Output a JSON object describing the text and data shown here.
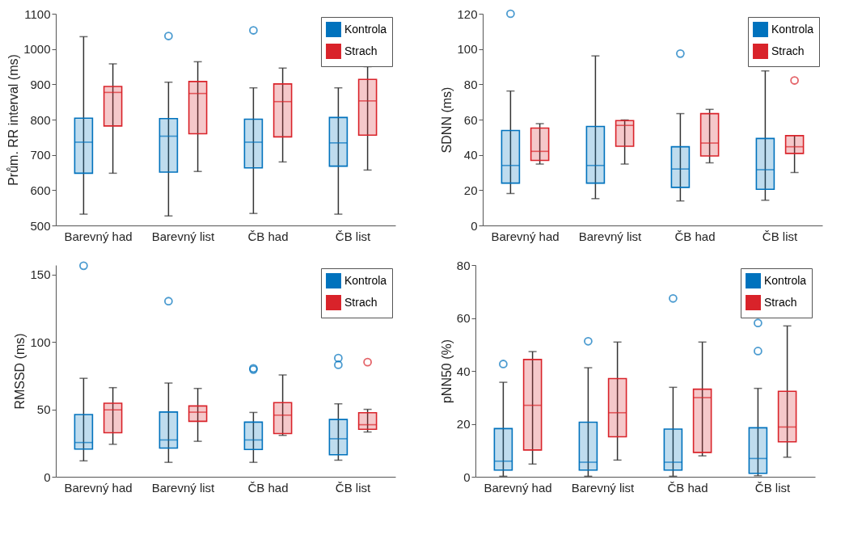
{
  "chart_data": [
    {
      "type": "box",
      "ylabel": "Prům. RR interval (ms)",
      "categories": [
        "Barevný had",
        "Barevný list",
        "ČB had",
        "ČB list"
      ],
      "ylim": [
        500,
        1100
      ],
      "yticks": [
        500,
        600,
        700,
        800,
        900,
        1000,
        1100
      ],
      "grid": false,
      "legend": "top right",
      "series": [
        {
          "name": "Kontrola",
          "color": "#0072bd",
          "boxes": [
            {
              "low": 532,
              "q1": 648,
              "median": 736,
              "q3": 804,
              "high": 1035
            },
            {
              "low": 527,
              "q1": 651,
              "median": 753,
              "q3": 803,
              "high": 906,
              "outliers": [
                1037
              ]
            },
            {
              "low": 534,
              "q1": 663,
              "median": 736,
              "q3": 801,
              "high": 890,
              "outliers": [
                1053
              ]
            },
            {
              "low": 532,
              "q1": 668,
              "median": 734,
              "q3": 806,
              "high": 890
            }
          ]
        },
        {
          "name": "Strach",
          "color": "#d9232a",
          "boxes": [
            {
              "low": 648,
              "q1": 782,
              "median": 877,
              "q3": 894,
              "high": 958
            },
            {
              "low": 653,
              "q1": 760,
              "median": 874,
              "q3": 908,
              "high": 964
            },
            {
              "low": 680,
              "q1": 751,
              "median": 851,
              "q3": 901,
              "high": 946
            },
            {
              "low": 657,
              "q1": 756,
              "median": 853,
              "q3": 914,
              "high": 950
            }
          ]
        }
      ]
    },
    {
      "type": "box",
      "ylabel": "SDNN (ms)",
      "categories": [
        "Barevný had",
        "Barevný list",
        "ČB had",
        "ČB list"
      ],
      "ylim": [
        0,
        120
      ],
      "yticks": [
        0,
        20,
        40,
        60,
        80,
        100,
        120
      ],
      "grid": false,
      "legend": "top right",
      "series": [
        {
          "name": "Kontrola",
          "color": "#0072bd",
          "boxes": [
            {
              "low": 18.1,
              "q1": 24,
              "median": 34,
              "q3": 53.8,
              "high": 76.2,
              "outliers": [
                120
              ]
            },
            {
              "low": 15.2,
              "q1": 24,
              "median": 34,
              "q3": 56.1,
              "high": 96.1
            },
            {
              "low": 13.9,
              "q1": 21.6,
              "median": 32,
              "q3": 44.6,
              "high": 63.4,
              "outliers": [
                97.4
              ]
            },
            {
              "low": 14.3,
              "q1": 20.5,
              "median": 31.6,
              "q3": 49.3,
              "high": 87.6
            }
          ]
        },
        {
          "name": "Strach",
          "color": "#d9232a",
          "boxes": [
            {
              "low": 34.8,
              "q1": 36.9,
              "median": 42,
              "q3": 55.2,
              "high": 57.7
            },
            {
              "low": 34.8,
              "q1": 44.9,
              "median": 56.7,
              "q3": 59.4,
              "high": 59.8
            },
            {
              "low": 35.5,
              "q1": 39.4,
              "median": 46.7,
              "q3": 63.4,
              "high": 65.8
            },
            {
              "low": 30,
              "q1": 40.8,
              "median": 44.6,
              "q3": 50.9,
              "high": 50.9,
              "outliers": [
                82.2
              ]
            }
          ]
        }
      ]
    },
    {
      "type": "box",
      "ylabel": "RMSSD (ms)",
      "categories": [
        "Barevný had",
        "Barevný list",
        "ČB had",
        "ČB list"
      ],
      "ylim": [
        0,
        157
      ],
      "yticks": [
        0,
        50,
        100,
        150
      ],
      "grid": false,
      "legend": "top right",
      "series": [
        {
          "name": "Kontrola",
          "color": "#0072bd",
          "boxes": [
            {
              "low": 11.8,
              "q1": 20.5,
              "median": 25.4,
              "q3": 46.1,
              "high": 73,
              "outliers": [
                156.5
              ]
            },
            {
              "low": 10.7,
              "q1": 21.3,
              "median": 27.3,
              "q3": 48,
              "high": 69.5,
              "outliers": [
                130.2
              ]
            },
            {
              "low": 10.7,
              "q1": 20.2,
              "median": 27.3,
              "q3": 40.5,
              "high": 47.7,
              "outliers": [
                80.4,
                79.5
              ]
            },
            {
              "low": 12.3,
              "q1": 16.3,
              "median": 28.2,
              "q3": 42.5,
              "high": 54.1,
              "outliers": [
                88,
                83
              ]
            }
          ]
        },
        {
          "name": "Strach",
          "color": "#d9232a",
          "boxes": [
            {
              "low": 24.1,
              "q1": 32.7,
              "median": 49.6,
              "q3": 54.5,
              "high": 66.1
            },
            {
              "low": 26.3,
              "q1": 41.1,
              "median": 47.9,
              "q3": 52.5,
              "high": 65.5
            },
            {
              "low": 30.7,
              "q1": 32.1,
              "median": 45.7,
              "q3": 55,
              "high": 75.5
            },
            {
              "low": 33.2,
              "q1": 35.2,
              "median": 38.6,
              "q3": 47.5,
              "high": 50,
              "outliers": [
                85
              ]
            }
          ]
        }
      ]
    },
    {
      "type": "box",
      "ylabel": "pNN50 (%)",
      "categories": [
        "Barevný had",
        "Barevný list",
        "ČB had",
        "ČB list"
      ],
      "ylim": [
        0,
        80
      ],
      "yticks": [
        0,
        20,
        40,
        60,
        80
      ],
      "grid": false,
      "legend": "top right",
      "series": [
        {
          "name": "Kontrola",
          "color": "#0072bd",
          "boxes": [
            {
              "low": 0.2,
              "q1": 2.5,
              "median": 5.9,
              "q3": 18.2,
              "high": 35.7,
              "outliers": [
                42.6
              ]
            },
            {
              "low": 0.2,
              "q1": 2.5,
              "median": 5.5,
              "q3": 20.6,
              "high": 41.2,
              "outliers": [
                51.2
              ]
            },
            {
              "low": 0.2,
              "q1": 2.5,
              "median": 5.5,
              "q3": 18,
              "high": 33.8,
              "outliers": [
                67.4
              ]
            },
            {
              "low": 0.4,
              "q1": 1.3,
              "median": 6.9,
              "q3": 18.5,
              "high": 33.4,
              "outliers": [
                58.1,
                47.5
              ]
            }
          ]
        },
        {
          "name": "Strach",
          "color": "#d9232a",
          "boxes": [
            {
              "low": 4.8,
              "q1": 10.1,
              "median": 27,
              "q3": 44.3,
              "high": 47.3
            },
            {
              "low": 6.3,
              "q1": 15.1,
              "median": 24.2,
              "q3": 37.1,
              "high": 50.9
            },
            {
              "low": 7.9,
              "q1": 9.2,
              "median": 29.9,
              "q3": 33.1,
              "high": 50.9
            },
            {
              "low": 7.4,
              "q1": 13.2,
              "median": 18.8,
              "q3": 32.3,
              "high": 57
            }
          ]
        }
      ]
    }
  ]
}
